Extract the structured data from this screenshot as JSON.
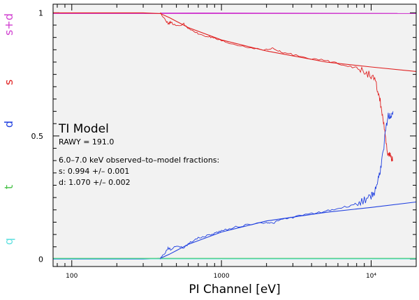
{
  "chart_data": {
    "type": "line",
    "xscale": "log",
    "xlim": [
      75,
      20000
    ],
    "ylim": [
      -0.03,
      1.035
    ],
    "xlabel": "PI Channel [eV]",
    "x_ticks": [
      {
        "value": 100,
        "label": "100"
      },
      {
        "value": 1000,
        "label": "1000"
      },
      {
        "value": 10000,
        "label": "10⁴"
      }
    ],
    "y_ticks": [
      {
        "value": 0,
        "label": "0"
      },
      {
        "value": 0.5,
        "label": "0.5"
      },
      {
        "value": 1,
        "label": "1"
      }
    ],
    "ylabels": [
      {
        "text": "s+d",
        "color": "#d040d0",
        "position": "top"
      },
      {
        "text": "s",
        "color": "#e02020",
        "position": "upper"
      },
      {
        "text": "d",
        "color": "#2040e0",
        "position": "middle"
      },
      {
        "text": "t",
        "color": "#40c040",
        "position": "lower"
      },
      {
        "text": "q",
        "color": "#60e0e0",
        "position": "bottom"
      }
    ],
    "annotation": {
      "title": "TI Model",
      "rawy": "RAWY = 191.0",
      "fractions_title": "6.0–7.0 keV observed–to–model fractions:",
      "s_line": "s: 0.994 +/– 0.001",
      "d_line": "d: 1.070 +/– 0.002"
    },
    "series": [
      {
        "name": "s+d model",
        "color": "#d040d0",
        "x": [
          75,
          20000
        ],
        "y": [
          0.997,
          0.997
        ]
      },
      {
        "name": "s model",
        "color": "#e02020",
        "x": [
          75,
          300,
          390,
          450,
          600,
          1000,
          2000,
          5000,
          10000,
          20000
        ],
        "y": [
          1.0,
          1.0,
          0.997,
          0.98,
          0.94,
          0.89,
          0.845,
          0.8,
          0.78,
          0.762
        ]
      },
      {
        "name": "d model",
        "color": "#2040e0",
        "x": [
          75,
          300,
          390,
          450,
          600,
          1000,
          2000,
          5000,
          10000,
          20000
        ],
        "y": [
          0.0,
          0.0,
          0.003,
          0.02,
          0.06,
          0.11,
          0.155,
          0.19,
          0.21,
          0.232
        ]
      },
      {
        "name": "t model",
        "color": "#40c040",
        "x": [
          75,
          20000
        ],
        "y": [
          0.003,
          0.003
        ]
      },
      {
        "name": "q model",
        "color": "#60e0e0",
        "x": [
          75,
          20000
        ],
        "y": [
          0.001,
          0.001
        ]
      },
      {
        "name": "s+d observed",
        "color": "#d040d0",
        "x": [
          390,
          15000
        ],
        "y": [
          1.0,
          0.998
        ]
      },
      {
        "name": "s observed",
        "color": "#e02020",
        "x": [
          390,
          420,
          440,
          460,
          500,
          560,
          620,
          700,
          800,
          900,
          1000,
          1200,
          1500,
          2000,
          2200,
          2500,
          3000,
          4000,
          5000,
          6000,
          7000,
          8000,
          9000,
          10000,
          10500,
          11000,
          11500,
          12000,
          12500,
          13000,
          13500,
          14000
        ],
        "y": [
          1.0,
          0.975,
          0.955,
          0.962,
          0.945,
          0.955,
          0.93,
          0.915,
          0.905,
          0.895,
          0.885,
          0.872,
          0.86,
          0.85,
          0.855,
          0.84,
          0.83,
          0.815,
          0.805,
          0.795,
          0.785,
          0.775,
          0.76,
          0.745,
          0.73,
          0.69,
          0.64,
          0.57,
          0.48,
          0.42,
          0.42,
          0.4
        ]
      },
      {
        "name": "d observed",
        "color": "#2040e0",
        "x": [
          390,
          420,
          440,
          460,
          500,
          560,
          620,
          700,
          800,
          900,
          1000,
          1200,
          1500,
          2000,
          2200,
          2500,
          3000,
          4000,
          5000,
          6000,
          7000,
          8000,
          9000,
          10000,
          10500,
          11000,
          11500,
          12000,
          12500,
          13000,
          13500,
          14000
        ],
        "y": [
          0.003,
          0.025,
          0.045,
          0.038,
          0.055,
          0.045,
          0.07,
          0.085,
          0.095,
          0.105,
          0.115,
          0.128,
          0.14,
          0.15,
          0.145,
          0.16,
          0.17,
          0.185,
          0.195,
          0.205,
          0.215,
          0.225,
          0.24,
          0.255,
          0.27,
          0.31,
          0.36,
          0.43,
          0.52,
          0.58,
          0.58,
          0.6
        ]
      }
    ]
  }
}
